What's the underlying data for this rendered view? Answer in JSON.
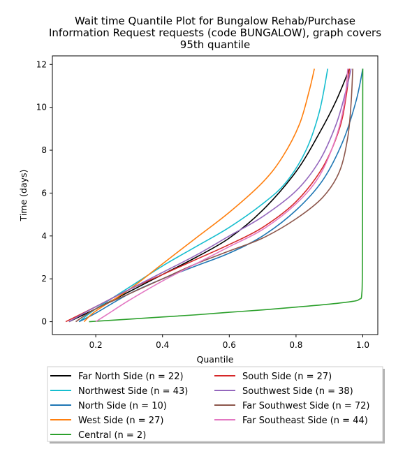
{
  "chart_data": {
    "type": "line",
    "title_lines": [
      "Wait time Quantile Plot for Bungalow Rehab/Purchase",
      "Information Request  requests (code BUNGALOW), graph covers",
      "95th quantile"
    ],
    "xlabel": "Quantile",
    "ylabel": "Time (days)",
    "xlim": [
      0.07,
      1.045
    ],
    "ylim": [
      -0.6,
      12.4
    ],
    "x_ticks": [
      0.2,
      0.4,
      0.6,
      0.8,
      1.0
    ],
    "x_tick_labels": [
      "0.2",
      "0.4",
      "0.6",
      "0.8",
      "1.0"
    ],
    "y_ticks": [
      0,
      2,
      4,
      6,
      8,
      10,
      12
    ],
    "y_tick_labels": [
      "0",
      "2",
      "4",
      "6",
      "8",
      "10",
      "12"
    ],
    "grid": false,
    "legend_position": "below plot, two columns",
    "series": [
      {
        "name": "Far North Side (n = 22)",
        "color": "#000000",
        "points": [
          [
            0.12,
            0
          ],
          [
            0.2,
            0.6
          ],
          [
            0.3,
            1.4
          ],
          [
            0.4,
            2.2
          ],
          [
            0.5,
            3.0
          ],
          [
            0.6,
            3.9
          ],
          [
            0.7,
            5.2
          ],
          [
            0.8,
            7.0
          ],
          [
            0.87,
            8.8
          ],
          [
            0.92,
            10.3
          ],
          [
            0.96,
            11.8
          ]
        ]
      },
      {
        "name": "Northwest Side (n = 43)",
        "color": "#17becf",
        "points": [
          [
            0.15,
            0
          ],
          [
            0.2,
            0.6
          ],
          [
            0.3,
            1.6
          ],
          [
            0.4,
            2.6
          ],
          [
            0.5,
            3.5
          ],
          [
            0.6,
            4.4
          ],
          [
            0.7,
            5.5
          ],
          [
            0.77,
            6.5
          ],
          [
            0.83,
            8.0
          ],
          [
            0.87,
            9.8
          ],
          [
            0.895,
            11.8
          ]
        ]
      },
      {
        "name": "North Side (n = 10)",
        "color": "#1f77b4",
        "points": [
          [
            0.15,
            0
          ],
          [
            0.2,
            0.4
          ],
          [
            0.3,
            1.3
          ],
          [
            0.4,
            2.0
          ],
          [
            0.5,
            2.6
          ],
          [
            0.6,
            3.2
          ],
          [
            0.7,
            4.0
          ],
          [
            0.8,
            5.2
          ],
          [
            0.88,
            6.6
          ],
          [
            0.94,
            8.4
          ],
          [
            0.98,
            10.3
          ],
          [
            1.0,
            11.8
          ]
        ]
      },
      {
        "name": "West Side (n = 27)",
        "color": "#ff7f0e",
        "points": [
          [
            0.165,
            0
          ],
          [
            0.2,
            0.5
          ],
          [
            0.3,
            1.5
          ],
          [
            0.4,
            2.7
          ],
          [
            0.5,
            3.9
          ],
          [
            0.6,
            5.1
          ],
          [
            0.7,
            6.5
          ],
          [
            0.76,
            7.7
          ],
          [
            0.81,
            9.2
          ],
          [
            0.84,
            10.8
          ],
          [
            0.855,
            11.8
          ]
        ]
      },
      {
        "name": "Central (n = 2)",
        "color": "#2ca02c",
        "points": [
          [
            0.18,
            0
          ],
          [
            0.3,
            0.12
          ],
          [
            0.4,
            0.22
          ],
          [
            0.5,
            0.32
          ],
          [
            0.6,
            0.44
          ],
          [
            0.7,
            0.55
          ],
          [
            0.8,
            0.68
          ],
          [
            0.9,
            0.82
          ],
          [
            0.97,
            0.95
          ],
          [
            0.99,
            1.05
          ],
          [
            0.997,
            1.3
          ],
          [
            0.999,
            3.0
          ],
          [
            1.0,
            11.8
          ]
        ]
      },
      {
        "name": "South Side (n = 27)",
        "color": "#d62728",
        "points": [
          [
            0.11,
            0
          ],
          [
            0.2,
            0.7
          ],
          [
            0.3,
            1.5
          ],
          [
            0.4,
            2.2
          ],
          [
            0.5,
            2.9
          ],
          [
            0.6,
            3.6
          ],
          [
            0.7,
            4.4
          ],
          [
            0.8,
            5.6
          ],
          [
            0.88,
            7.2
          ],
          [
            0.93,
            9.0
          ],
          [
            0.95,
            10.5
          ],
          [
            0.96,
            11.8
          ]
        ]
      },
      {
        "name": "Southwest Side (n = 38)",
        "color": "#9467bd",
        "points": [
          [
            0.12,
            0
          ],
          [
            0.2,
            0.7
          ],
          [
            0.3,
            1.5
          ],
          [
            0.4,
            2.3
          ],
          [
            0.5,
            3.1
          ],
          [
            0.6,
            4.0
          ],
          [
            0.7,
            4.9
          ],
          [
            0.8,
            6.1
          ],
          [
            0.87,
            7.5
          ],
          [
            0.92,
            9.2
          ],
          [
            0.95,
            10.8
          ],
          [
            0.965,
            11.8
          ]
        ]
      },
      {
        "name": "Far Southwest Side (n = 72)",
        "color": "#8c564b",
        "points": [
          [
            0.14,
            0
          ],
          [
            0.2,
            0.6
          ],
          [
            0.3,
            1.3
          ],
          [
            0.4,
            2.0
          ],
          [
            0.5,
            2.7
          ],
          [
            0.6,
            3.3
          ],
          [
            0.7,
            3.9
          ],
          [
            0.8,
            4.8
          ],
          [
            0.88,
            5.8
          ],
          [
            0.93,
            7.0
          ],
          [
            0.955,
            8.6
          ],
          [
            0.965,
            10.2
          ],
          [
            0.97,
            11.8
          ]
        ]
      },
      {
        "name": "Far Southeast Side (n = 44)",
        "color": "#e377c2",
        "points": [
          [
            0.2,
            0
          ],
          [
            0.25,
            0.5
          ],
          [
            0.3,
            1.0
          ],
          [
            0.4,
            1.9
          ],
          [
            0.5,
            2.7
          ],
          [
            0.6,
            3.5
          ],
          [
            0.7,
            4.3
          ],
          [
            0.8,
            5.5
          ],
          [
            0.87,
            6.8
          ],
          [
            0.92,
            8.6
          ],
          [
            0.945,
            10.2
          ],
          [
            0.955,
            11.8
          ]
        ]
      }
    ]
  }
}
